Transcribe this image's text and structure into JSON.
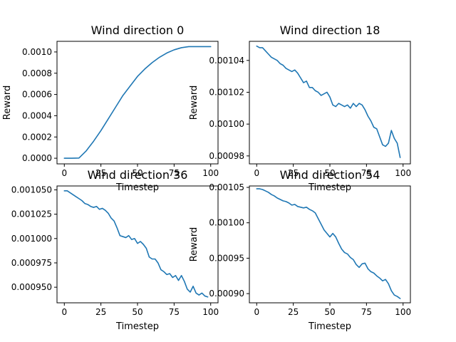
{
  "colors": {
    "series": "#1f77b4",
    "axes": "#000000",
    "background": "#ffffff"
  },
  "chart_data": [
    {
      "type": "line",
      "title": "Wind direction 0",
      "xlabel": "Timestep",
      "ylabel": "Reward",
      "xlim": [
        -5,
        105
      ],
      "ylim": [
        -5.3e-05,
        0.0011
      ],
      "xticks": [
        0,
        25,
        50,
        75,
        100
      ],
      "xtick_labels": [
        "0",
        "25",
        "50",
        "75",
        "100"
      ],
      "yticks": [
        0,
        0.0002,
        0.0004,
        0.0006,
        0.0008,
        0.001
      ],
      "ytick_labels": [
        "0.0000",
        "0.0002",
        "0.0004",
        "0.0006",
        "0.0008",
        "0.0010"
      ],
      "x": [
        0,
        5,
        10,
        15,
        20,
        25,
        30,
        35,
        40,
        45,
        50,
        55,
        60,
        65,
        70,
        75,
        80,
        85,
        90,
        95,
        100
      ],
      "series": [
        {
          "values": [
            0.0,
            0.0,
            2e-06,
            7e-05,
            0.00016,
            0.00026,
            0.00037,
            0.00048,
            0.00059,
            0.00068,
            0.00077,
            0.00084,
            0.0009,
            0.00095,
            0.00099,
            0.00102,
            0.00104,
            0.00105,
            0.00105,
            0.00105,
            0.00105
          ]
        }
      ],
      "grid": false
    },
    {
      "type": "line",
      "title": "Wind direction 18",
      "xlabel": "Timestep",
      "ylabel": "Reward",
      "xlim": [
        -5,
        105
      ],
      "ylim": [
        0.000975,
        0.001052
      ],
      "xticks": [
        0,
        25,
        50,
        75,
        100
      ],
      "xtick_labels": [
        "0",
        "25",
        "50",
        "75",
        "100"
      ],
      "yticks": [
        0.00098,
        0.001,
        0.00102,
        0.00104
      ],
      "ytick_labels": [
        "0.00098",
        "0.00100",
        "0.00102",
        "0.00104"
      ],
      "x": [
        0,
        2,
        4,
        6,
        8,
        10,
        12,
        14,
        16,
        18,
        20,
        22,
        24,
        26,
        28,
        30,
        32,
        34,
        36,
        38,
        40,
        42,
        44,
        46,
        48,
        50,
        52,
        54,
        56,
        58,
        60,
        62,
        64,
        66,
        68,
        70,
        72,
        74,
        76,
        78,
        80,
        82,
        84,
        86,
        88,
        90,
        92,
        94,
        96,
        98
      ],
      "series": [
        {
          "values": [
            0.001049,
            0.001048,
            0.001048,
            0.001046,
            0.001044,
            0.001042,
            0.001041,
            0.00104,
            0.001038,
            0.001037,
            0.001035,
            0.001034,
            0.001033,
            0.001034,
            0.001032,
            0.001029,
            0.001026,
            0.001027,
            0.001023,
            0.001023,
            0.001021,
            0.00102,
            0.001018,
            0.001019,
            0.00102,
            0.001017,
            0.001012,
            0.001011,
            0.001013,
            0.001012,
            0.001011,
            0.001012,
            0.00101,
            0.001013,
            0.001011,
            0.001013,
            0.001012,
            0.001009,
            0.001005,
            0.001002,
            0.000998,
            0.000997,
            0.000992,
            0.000987,
            0.000986,
            0.000988,
            0.000996,
            0.000991,
            0.000988,
            0.000979
          ]
        }
      ],
      "grid": false
    },
    {
      "type": "line",
      "title": "Wind direction 36",
      "xlabel": "Timestep",
      "ylabel": "",
      "xlim": [
        -5,
        105
      ],
      "ylim": [
        0.000934,
        0.001054
      ],
      "xticks": [
        0,
        25,
        50,
        75,
        100
      ],
      "xtick_labels": [
        "0",
        "25",
        "50",
        "75",
        "100"
      ],
      "yticks": [
        0.00095,
        0.000975,
        0.001,
        0.001025,
        0.00105
      ],
      "ytick_labels": [
        "0.000950",
        "0.000975",
        "0.001000",
        "0.001025",
        "0.001050"
      ],
      "x": [
        0,
        2,
        4,
        6,
        8,
        10,
        12,
        14,
        16,
        18,
        20,
        22,
        24,
        26,
        28,
        30,
        32,
        34,
        36,
        38,
        40,
        42,
        44,
        46,
        48,
        50,
        52,
        54,
        56,
        58,
        60,
        62,
        64,
        66,
        68,
        70,
        72,
        74,
        76,
        78,
        80,
        82,
        84,
        86,
        88,
        90,
        92,
        94,
        96,
        98
      ],
      "series": [
        {
          "values": [
            0.001049,
            0.001049,
            0.001047,
            0.001045,
            0.001043,
            0.001041,
            0.001039,
            0.001036,
            0.001035,
            0.001033,
            0.001032,
            0.001033,
            0.00103,
            0.001031,
            0.001029,
            0.001026,
            0.001021,
            0.001018,
            0.001011,
            0.001003,
            0.001002,
            0.001001,
            0.001003,
            0.000999,
            0.001,
            0.000995,
            0.000997,
            0.000994,
            0.00099,
            0.000981,
            0.000979,
            0.000979,
            0.000975,
            0.000968,
            0.000966,
            0.000963,
            0.000964,
            0.00096,
            0.000962,
            0.000957,
            0.000962,
            0.000956,
            0.000948,
            0.000945,
            0.000951,
            0.000944,
            0.000942,
            0.000944,
            0.000941,
            0.00094
          ]
        }
      ],
      "grid": false
    },
    {
      "type": "line",
      "title": "Wind direction 54",
      "xlabel": "Timestep",
      "ylabel": "Reward",
      "xlim": [
        -5,
        105
      ],
      "ylim": [
        0.000887,
        0.001052
      ],
      "xticks": [
        0,
        25,
        50,
        75,
        100
      ],
      "xtick_labels": [
        "0",
        "25",
        "50",
        "75",
        "100"
      ],
      "yticks": [
        0.0009,
        0.00095,
        0.001,
        0.00105
      ],
      "ytick_labels": [
        "0.00090",
        "0.00095",
        "0.00100",
        "0.00105"
      ],
      "x": [
        0,
        2,
        4,
        6,
        8,
        10,
        12,
        14,
        16,
        18,
        20,
        22,
        24,
        26,
        28,
        30,
        32,
        34,
        36,
        38,
        40,
        42,
        44,
        46,
        48,
        50,
        52,
        54,
        56,
        58,
        60,
        62,
        64,
        66,
        68,
        70,
        72,
        74,
        76,
        78,
        80,
        82,
        84,
        86,
        88,
        90,
        92,
        94,
        96,
        98
      ],
      "series": [
        {
          "values": [
            0.001048,
            0.001048,
            0.001047,
            0.001045,
            0.001043,
            0.00104,
            0.001038,
            0.001035,
            0.001033,
            0.001031,
            0.00103,
            0.001028,
            0.001025,
            0.001026,
            0.001023,
            0.001022,
            0.001021,
            0.001022,
            0.001019,
            0.001017,
            0.001014,
            0.001006,
            0.000998,
            0.00099,
            0.000985,
            0.00098,
            0.000985,
            0.00098,
            0.000971,
            0.000963,
            0.000958,
            0.000956,
            0.000951,
            0.000948,
            0.000941,
            0.000937,
            0.000942,
            0.000943,
            0.000935,
            0.000931,
            0.000929,
            0.000925,
            0.000922,
            0.000918,
            0.00092,
            0.000914,
            0.000904,
            0.000898,
            0.000896,
            0.000893
          ]
        }
      ],
      "grid": false
    }
  ]
}
